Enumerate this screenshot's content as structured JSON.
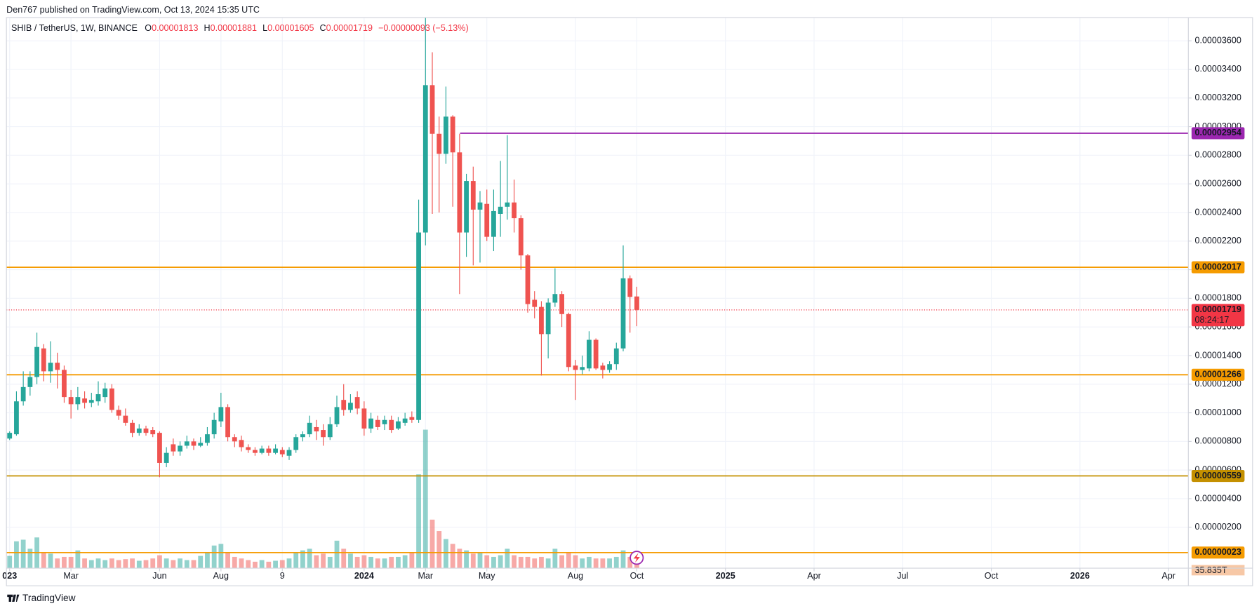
{
  "chart_data": {
    "type": "candlestick",
    "published": "Den767 published on TradingView.com, Oct 13, 2024 15:35 UTC",
    "symbol": "SHIB / TetherUS, 1W, BINANCE",
    "header": {
      "open": "0.00001813",
      "high": "0.00001881",
      "low": "0.00001605",
      "close": "0.00001719",
      "change": "−0.00000093 (−5.13%)"
    },
    "brand": "TradingView",
    "up_color": "#26a69a",
    "down_color": "#ef5350",
    "open": [
      8.2e-06,
      8.5e-06,
      1.08e-05,
      1.18e-05,
      1.25e-05,
      1.45e-05,
      1.29e-05,
      1.35e-05,
      1.3e-05,
      1.11e-05,
      1.06e-05,
      1.1e-05,
      1.07e-05,
      1.08e-05,
      1.11e-05,
      1.17e-05,
      1.02e-05,
      9.8e-06,
      9.3e-06,
      8.6e-06,
      8.9e-06,
      8.8e-06,
      8.6e-06,
      6.5e-06,
      7.8e-06,
      7.3e-06,
      7.7e-06,
      8e-06,
      7.7e-06,
      7.9e-06,
      8.5e-06,
      9.4e-06,
      1.04e-05,
      8.3e-06,
      8.1e-06,
      7.6e-06,
      7.4e-06,
      7.2e-06,
      7.5e-06,
      7.2e-06,
      7.4e-06,
      7e-06,
      7.4e-06,
      8.3e-06,
      8.5e-06,
      9e-06,
      8.8e-06,
      8.3e-06,
      9.2e-06,
      1.09e-05,
      1.02e-05,
      1.11e-05,
      1.03e-05,
      8.9e-06,
      9.5e-06,
      9.2e-06,
      9.5e-06,
      8.9e-06,
      9.3e-06,
      9.7e-06,
      9.5e-06,
      2.26e-05,
      3.29e-05,
      2.95e-05,
      2.81e-05,
      3.07e-05,
      2.82e-05,
      2.26e-05,
      2.62e-05,
      2.42e-05,
      2.46e-05,
      2.23e-05,
      2.39e-05,
      2.44e-05,
      2.47e-05,
      2.36e-05,
      2.1e-05,
      1.79e-05,
      1.74e-05,
      1.55e-05,
      1.77e-05,
      1.83e-05,
      1.69e-05,
      1.33e-05,
      1.3e-05,
      1.31e-05,
      1.51e-05,
      1.33e-05,
      1.3e-05,
      1.34e-05,
      1.45e-05,
      1.94e-05,
      1.813e-05
    ],
    "high": [
      8.7e-06,
      1.15e-05,
      1.29e-05,
      1.29e-05,
      1.56e-05,
      1.48e-05,
      1.5e-05,
      1.42e-05,
      1.33e-05,
      1.16e-05,
      1.18e-05,
      1.15e-05,
      1.14e-05,
      1.22e-05,
      1.21e-05,
      1.2e-05,
      1.05e-05,
      1.03e-05,
      9.5e-06,
      9.2e-06,
      9.1e-06,
      9e-06,
      8.7e-06,
      7.6e-06,
      8.2e-06,
      8e-06,
      8.4e-06,
      8.2e-06,
      8.3e-06,
      9e-06,
      1e-05,
      1.14e-05,
      1.06e-05,
      8.5e-06,
      8.4e-06,
      7.8e-06,
      7.6e-06,
      7.7e-06,
      7.7e-06,
      7.8e-06,
      7.6e-06,
      7.6e-06,
      8.5e-06,
      8.7e-06,
      9.8e-06,
      9.5e-06,
      9.2e-06,
      9.7e-06,
      1.12e-05,
      1.2e-05,
      1.13e-05,
      1.15e-05,
      1.08e-05,
      1e-05,
      9.8e-06,
      9.8e-06,
      9.8e-06,
      9.7e-06,
      1e-05,
      1.01e-05,
      2.49e-05,
      3.76e-05,
      3.52e-05,
      3.07e-05,
      3.28e-05,
      3.08e-05,
      2.95e-05,
      2.67e-05,
      2.72e-05,
      2.55e-05,
      2.56e-05,
      2.56e-05,
      2.76e-05,
      2.94e-05,
      2.63e-05,
      2.38e-05,
      2.11e-05,
      1.85e-05,
      1.78e-05,
      1.8e-05,
      2.01e-05,
      1.85e-05,
      1.7e-05,
      1.37e-05,
      1.4e-05,
      1.57e-05,
      1.52e-05,
      1.35e-05,
      1.36e-05,
      1.49e-05,
      2.17e-05,
      1.96e-05,
      1.881e-05
    ],
    "low": [
      8.1e-06,
      8.4e-06,
      1.05e-05,
      1.12e-05,
      1.2e-05,
      1.22e-05,
      1.21e-05,
      1.17e-05,
      1.07e-05,
      9.6e-06,
      1.02e-05,
      1.03e-05,
      1.04e-05,
      1.05e-05,
      1.07e-05,
      1e-05,
      9.5e-06,
      9.1e-06,
      8.3e-06,
      8.4e-06,
      8.4e-06,
      8.3e-06,
      5.5e-06,
      6.2e-06,
      7e-06,
      7e-06,
      7.5e-06,
      7.4e-06,
      7.6e-06,
      7.7e-06,
      8.2e-06,
      9e-06,
      8e-06,
      7.6e-06,
      7.3e-06,
      7.2e-06,
      7e-06,
      7.1e-06,
      7e-06,
      7.1e-06,
      6.9e-06,
      6.7e-06,
      7.2e-06,
      8e-06,
      8.3e-06,
      8.1e-06,
      7.7e-06,
      8.1e-06,
      9e-06,
      9.8e-06,
      1e-05,
      9.9e-06,
      8.4e-06,
      8.6e-06,
      8.8e-06,
      8.8e-06,
      8.6e-06,
      8.8e-06,
      9.1e-06,
      9.3e-06,
      9.3e-06,
      2.17e-05,
      2.39e-05,
      2.4e-05,
      2.74e-05,
      2.44e-05,
      1.83e-05,
      2.09e-05,
      2.03e-05,
      2.05e-05,
      2.2e-05,
      2.13e-05,
      2.23e-05,
      2.35e-05,
      2.26e-05,
      2e-05,
      1.7e-05,
      1.66e-05,
      1.26e-05,
      1.38e-05,
      1.74e-05,
      1.6e-05,
      1.29e-05,
      1.09e-05,
      1.27e-05,
      1.29e-05,
      1.3e-05,
      1.24e-05,
      1.28e-05,
      1.3e-05,
      1.43e-05,
      1.56e-05,
      1.605e-05
    ],
    "close": [
      8.6e-06,
      1.08e-05,
      1.18e-05,
      1.25e-05,
      1.46e-05,
      1.29e-05,
      1.35e-05,
      1.3e-05,
      1.11e-05,
      1.06e-05,
      1.11e-05,
      1.07e-05,
      1.09e-05,
      1.13e-05,
      1.17e-05,
      1.02e-05,
      9.8e-06,
      9.3e-06,
      8.6e-06,
      8.9e-06,
      8.6e-06,
      8.5e-06,
      6.5e-06,
      7.2e-06,
      7.3e-06,
      7.7e-06,
      8e-06,
      7.7e-06,
      7.9e-06,
      8.5e-06,
      9.5e-06,
      1.04e-05,
      8.3e-06,
      8e-06,
      7.6e-06,
      7.4e-06,
      7.2e-06,
      7.5e-06,
      7.2e-06,
      7.5e-06,
      7.1e-06,
      7.4e-06,
      8.3e-06,
      8.5e-06,
      9.3e-06,
      8.7e-06,
      8.3e-06,
      9.2e-06,
      1.04e-05,
      1.02e-05,
      1.07e-05,
      1.03e-05,
      8.9e-06,
      9.6e-06,
      9e-06,
      9.5e-06,
      8.8e-06,
      9.4e-06,
      9.6e-06,
      9.5e-06,
      2.26e-05,
      3.29e-05,
      2.95e-05,
      2.81e-05,
      3.07e-05,
      2.82e-05,
      2.26e-05,
      2.62e-05,
      2.42e-05,
      2.47e-05,
      2.23e-05,
      2.41e-05,
      2.44e-05,
      2.47e-05,
      2.36e-05,
      2.1e-05,
      1.76e-05,
      1.74e-05,
      1.55e-05,
      1.77e-05,
      1.83e-05,
      1.69e-05,
      1.32e-05,
      1.3e-05,
      1.32e-05,
      1.51e-05,
      1.31e-05,
      1.3e-05,
      1.34e-05,
      1.45e-05,
      1.94e-05,
      1.81e-05,
      1.719e-05
    ],
    "volume": [
      38,
      83,
      88,
      60,
      95,
      50,
      45,
      30,
      35,
      35,
      55,
      30,
      25,
      30,
      25,
      30,
      25,
      28,
      30,
      23,
      25,
      30,
      40,
      30,
      25,
      30,
      25,
      25,
      38,
      50,
      70,
      75,
      50,
      35,
      30,
      25,
      20,
      25,
      20,
      23,
      25,
      30,
      50,
      55,
      60,
      40,
      45,
      35,
      85,
      60,
      45,
      35,
      40,
      35,
      30,
      30,
      35,
      35,
      40,
      50,
      290,
      428,
      150,
      115,
      90,
      75,
      60,
      55,
      45,
      50,
      40,
      35,
      40,
      60,
      40,
      35,
      35,
      30,
      35,
      30,
      60,
      40,
      50,
      40,
      30,
      35,
      30,
      30,
      30,
      35,
      55,
      35,
      35.835
    ],
    "volume_label": "35.835T",
    "volume_ylim": [
      0,
      450
    ],
    "xlim": [
      -0.47,
      172.9
    ],
    "xticks": [
      {
        "value": 0,
        "label": "023"
      },
      {
        "value": 9,
        "label": "Mar"
      },
      {
        "value": 22,
        "label": "Jun"
      },
      {
        "value": 31,
        "label": "Aug"
      },
      {
        "value": 40,
        "label": "9"
      },
      {
        "value": 52,
        "label": "2024"
      },
      {
        "value": 61,
        "label": "Mar"
      },
      {
        "value": 70,
        "label": "May"
      },
      {
        "value": 83,
        "label": "Aug"
      },
      {
        "value": 92,
        "label": "Oct"
      },
      {
        "value": 105,
        "label": "2025"
      },
      {
        "value": 118,
        "label": "Apr"
      },
      {
        "value": 131,
        "label": "Jul"
      },
      {
        "value": 144,
        "label": "Oct"
      },
      {
        "value": 157,
        "label": "2026"
      },
      {
        "value": 170,
        "label": "Apr"
      }
    ],
    "ylim": [
      -8.6e-07,
      3.762e-05
    ],
    "yticks": [
      {
        "value": 3.6e-05,
        "label": "0.00003600"
      },
      {
        "value": 3.4e-05,
        "label": "0.00003400"
      },
      {
        "value": 3.2e-05,
        "label": "0.00003200"
      },
      {
        "value": 3e-05,
        "label": "0.00003000"
      },
      {
        "value": 2.8e-05,
        "label": "0.00002800"
      },
      {
        "value": 2.6e-05,
        "label": "0.00002600"
      },
      {
        "value": 2.4e-05,
        "label": "0.00002400"
      },
      {
        "value": 2.2e-05,
        "label": "0.00002200"
      },
      {
        "value": 2e-05,
        "label": "0.00002000"
      },
      {
        "value": 1.8e-05,
        "label": "0.00001800"
      },
      {
        "value": 1.6e-05,
        "label": "0.00001600"
      },
      {
        "value": 1.4e-05,
        "label": "0.00001400"
      },
      {
        "value": 1.2e-05,
        "label": "0.00001200"
      },
      {
        "value": 1e-05,
        "label": "0.00001000"
      },
      {
        "value": 8e-06,
        "label": "0.00000800"
      },
      {
        "value": 6e-06,
        "label": "0.00000600"
      },
      {
        "value": 4e-06,
        "label": "0.00000400"
      },
      {
        "value": 2e-06,
        "label": "0.00000200"
      }
    ],
    "grid": true,
    "hlines": [
      {
        "value": 2.954e-05,
        "label": "0.00002954",
        "color": "#9c27b0"
      },
      {
        "value": 2.017e-05,
        "label": "0.00002017",
        "color": "#f59b00"
      },
      {
        "value": 1.266e-05,
        "label": "0.00001266",
        "color": "#f59b00"
      },
      {
        "value": 5.59e-06,
        "label": "0.00000559",
        "color": "#c49000"
      },
      {
        "value": 2.3e-07,
        "label": "0.00000023",
        "color": "#f59b00"
      }
    ],
    "last_price": {
      "value": 1.719e-05,
      "label": "0.00001719",
      "countdown": "08:24:17",
      "color": "#f23645"
    }
  }
}
